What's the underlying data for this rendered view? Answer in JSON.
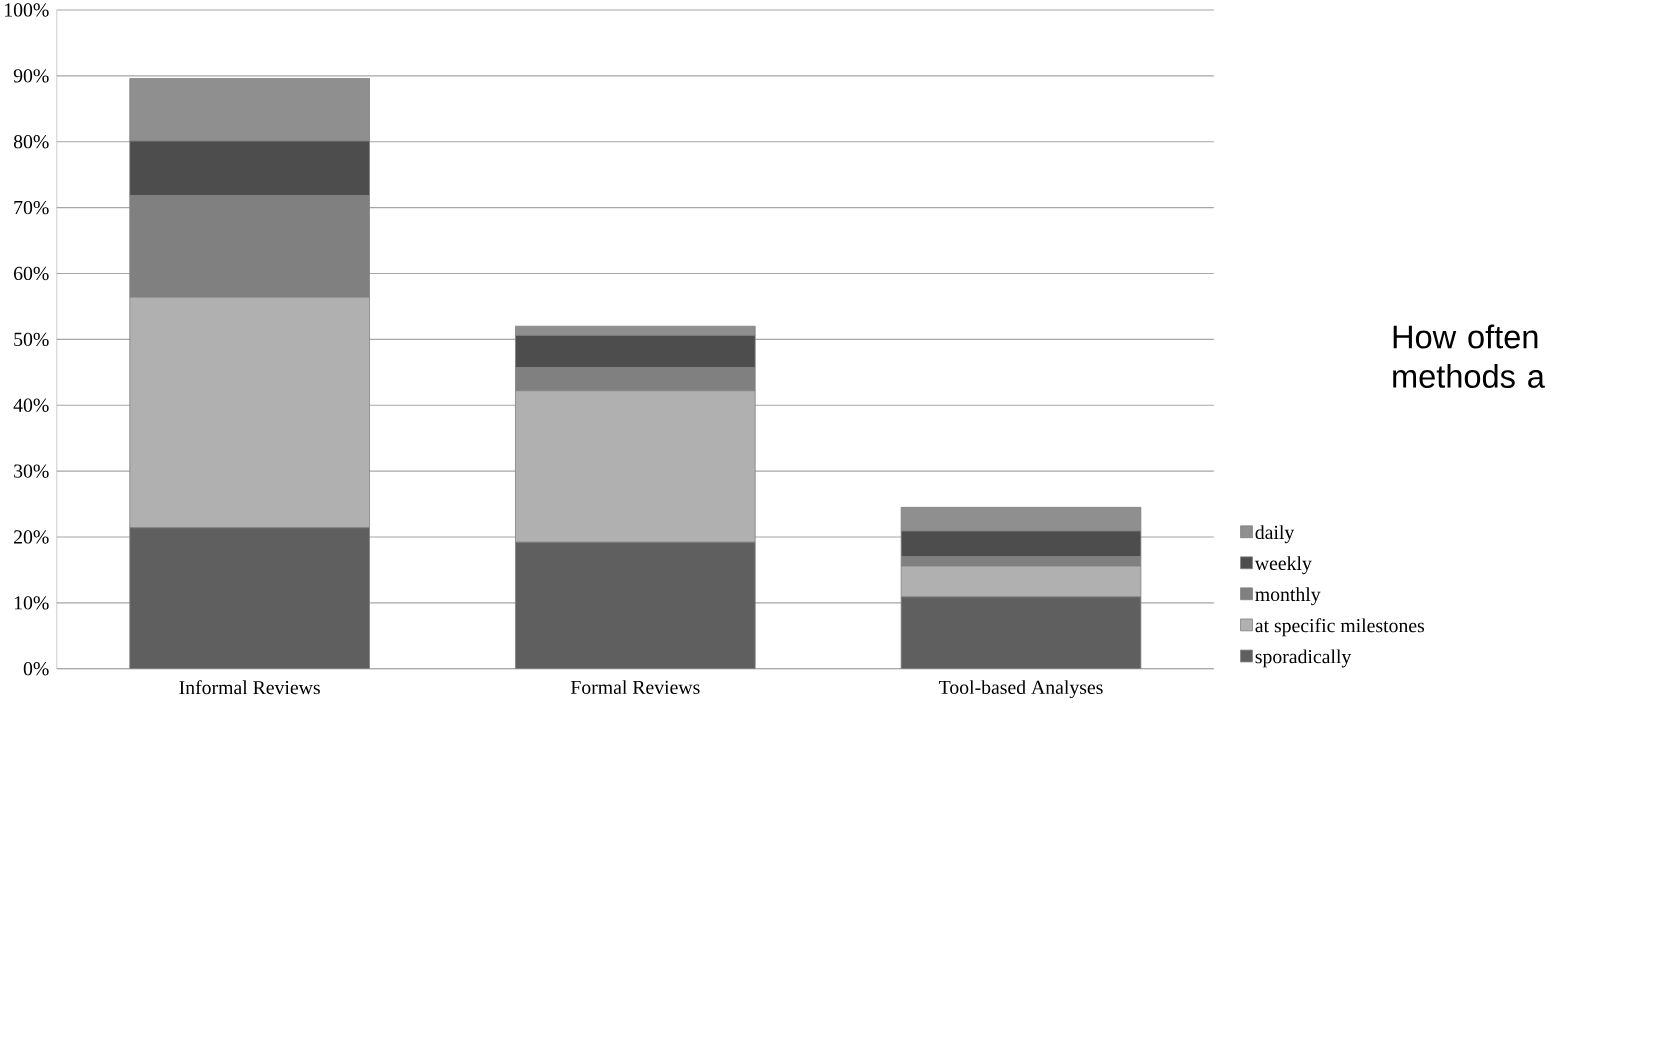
{
  "chart_data": {
    "type": "bar",
    "title": "How often methods a",
    "stacked": true,
    "categories": [
      "Informal Reviews",
      "Formal Reviews",
      "Tool-based Analyses"
    ],
    "series": [
      {
        "name": "sporadically",
        "color": "#5f5f5f",
        "values": [
          21.4,
          19.2,
          10.9
        ]
      },
      {
        "name": "at specific milestones",
        "color": "#b0b0b0",
        "values": [
          35.0,
          23.0,
          4.7
        ]
      },
      {
        "name": "monthly",
        "color": "#808080",
        "values": [
          15.4,
          3.5,
          1.4
        ]
      },
      {
        "name": "weekly",
        "color": "#4d4d4d",
        "values": [
          8.3,
          4.9,
          3.9
        ]
      },
      {
        "name": "daily",
        "color": "#8f8f8f",
        "values": [
          9.5,
          1.4,
          3.6
        ]
      }
    ],
    "ylim": [
      0,
      100
    ],
    "yticks": [
      {
        "value": 0,
        "label": "0%"
      },
      {
        "value": 10,
        "label": "10%"
      },
      {
        "value": 20,
        "label": "20%"
      },
      {
        "value": 30,
        "label": "30%"
      },
      {
        "value": 40,
        "label": "40%"
      },
      {
        "value": 50,
        "label": "50%"
      },
      {
        "value": 60,
        "label": "60%"
      },
      {
        "value": 70,
        "label": "70%"
      },
      {
        "value": 80,
        "label": "80%"
      },
      {
        "value": 90,
        "label": "90%"
      },
      {
        "value": 100,
        "label": "100%"
      }
    ],
    "grid": "y",
    "legend": "right"
  }
}
